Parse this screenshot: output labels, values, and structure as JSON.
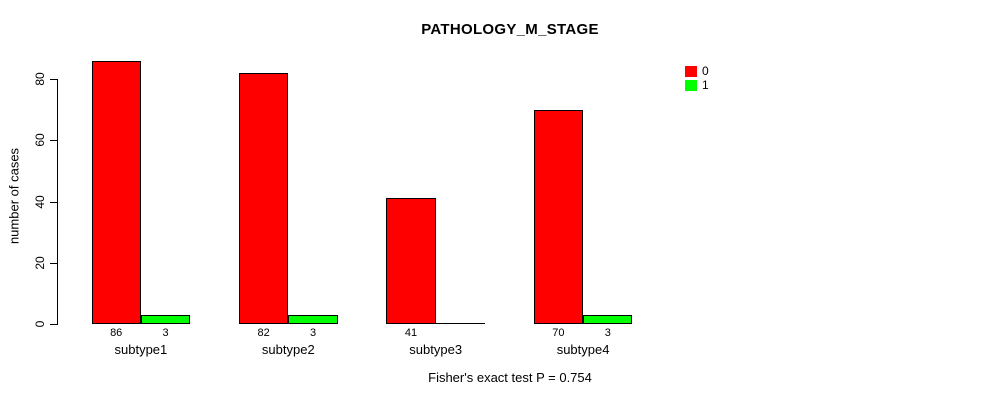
{
  "chart_data": {
    "type": "bar",
    "title": "PATHOLOGY_M_STAGE",
    "categories": [
      "subtype1",
      "subtype2",
      "subtype3",
      "subtype4"
    ],
    "series": [
      {
        "name": "0",
        "color": "#FF0000",
        "values": [
          86,
          82,
          41,
          70
        ]
      },
      {
        "name": "1",
        "color": "#00FF00",
        "values": [
          3,
          3,
          0,
          3
        ]
      }
    ],
    "bar_value_labels": [
      [
        "86",
        "82",
        "41",
        "70"
      ],
      [
        "3",
        "3",
        "",
        "3"
      ]
    ],
    "xlabel": "",
    "ylabel": "number of cases",
    "yticks": [
      0,
      20,
      40,
      60,
      80
    ],
    "ylim": [
      0,
      90
    ],
    "grid": false,
    "legend_position": "top-right",
    "bar_border_color": "#000000",
    "axis_color": "#000000",
    "annotation": "Fisher's exact test P = 0.754"
  }
}
